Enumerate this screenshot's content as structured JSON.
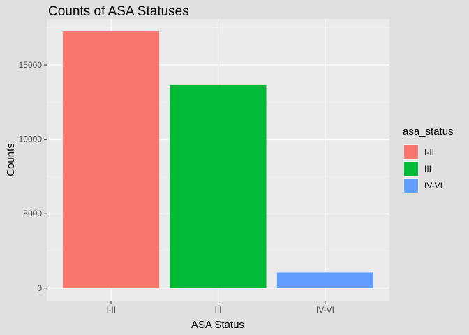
{
  "chart_data": {
    "type": "bar",
    "title": "Counts of ASA Statuses",
    "xlabel": "ASA Status",
    "ylabel": "Counts",
    "categories": [
      "I-II",
      "III",
      "IV-VI"
    ],
    "values": [
      17250,
      13650,
      1050
    ],
    "colors": [
      "#F8766D",
      "#00BA38",
      "#619CFF"
    ],
    "ylim": [
      -900,
      18100
    ],
    "yticks": [
      0,
      5000,
      10000,
      15000
    ],
    "ytick_labels": [
      "0",
      "5000",
      "10000",
      "15000"
    ],
    "grid": true,
    "legend": {
      "title": "asa_status",
      "position": "right",
      "entries": [
        "I-II",
        "III",
        "IV-VI"
      ]
    }
  }
}
